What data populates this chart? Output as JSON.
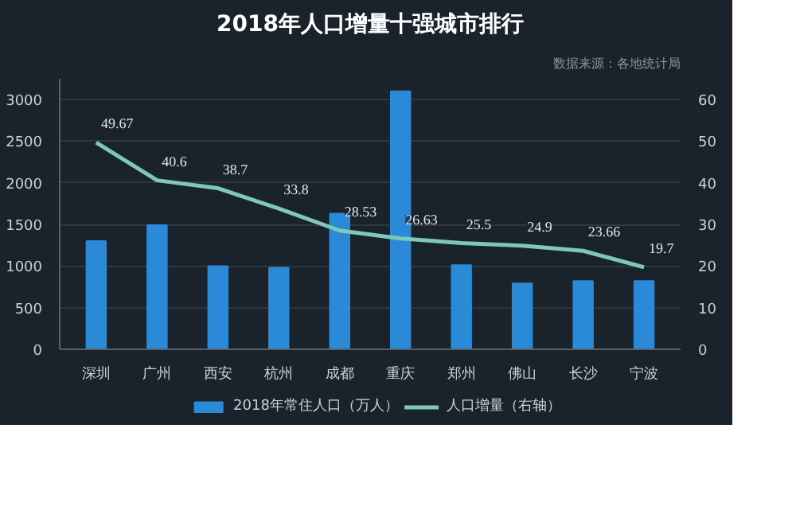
{
  "chart_data": {
    "type": "bar",
    "title": "2018年人口增量十强城市排行",
    "annotations": [
      "数据来源：各地统计局"
    ],
    "categories": [
      "深圳",
      "广州",
      "西安",
      "杭州",
      "成都",
      "重庆",
      "郑州",
      "佛山",
      "长沙",
      "宁波"
    ],
    "series": [
      {
        "name": "2018年常住人口（万人）",
        "color": "#2a8ad8",
        "values": [
          1300,
          1490,
          1000,
          980,
          1630,
          3100,
          1010,
          790,
          820,
          820
        ]
      },
      {
        "name": "人口增量（右轴）",
        "type": "line",
        "axis": "y2",
        "color": "#7fc8b8",
        "values": [
          49.67,
          40.6,
          38.7,
          33.8,
          28.53,
          26.63,
          25.5,
          24.9,
          23.66,
          19.7
        ],
        "data_labels": true
      }
    ],
    "ylim": [
      0,
      3250
    ],
    "yticks": [
      0,
      500,
      1000,
      1500,
      2000,
      2500,
      3000
    ],
    "y2lim": [
      0,
      65
    ],
    "y2ticks": [
      0,
      10,
      20,
      30,
      40,
      50,
      60
    ],
    "grid": "y",
    "legend": "bottom"
  }
}
